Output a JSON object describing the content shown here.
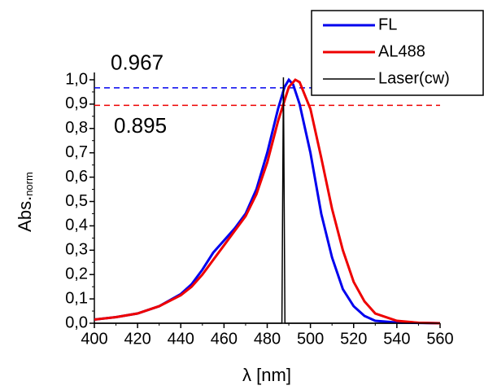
{
  "chart_data": {
    "type": "line",
    "x_label": "λ [nm]",
    "y_label": "Abs.",
    "y_label_sub": "norm",
    "xlim": [
      400,
      560
    ],
    "ylim": [
      0,
      1.03
    ],
    "xticks": [
      400,
      420,
      440,
      460,
      480,
      500,
      520,
      540,
      560
    ],
    "yticks": [
      {
        "value": 0,
        "label": "0,0"
      },
      {
        "value": 0.1,
        "label": "0,1"
      },
      {
        "value": 0.2,
        "label": "0,2"
      },
      {
        "value": 0.3,
        "label": "0,3"
      },
      {
        "value": 0.4,
        "label": "0,4"
      },
      {
        "value": 0.5,
        "label": "0,5"
      },
      {
        "value": 0.6,
        "label": "0,6"
      },
      {
        "value": 0.7,
        "label": "0,7"
      },
      {
        "value": 0.8,
        "label": "0,8"
      },
      {
        "value": 0.9,
        "label": "0,9"
      },
      {
        "value": 1.0,
        "label": "1,0"
      }
    ],
    "legend": "top-right",
    "series": [
      {
        "name": "FL",
        "color": "#0000ee",
        "x": [
          400,
          410,
          420,
          430,
          440,
          445,
          450,
          455,
          460,
          465,
          470,
          475,
          480,
          485,
          488,
          490,
          492,
          495,
          500,
          505,
          510,
          515,
          520,
          525,
          530,
          540,
          560
        ],
        "values": [
          0.015,
          0.025,
          0.04,
          0.07,
          0.12,
          0.16,
          0.22,
          0.29,
          0.34,
          0.39,
          0.45,
          0.55,
          0.7,
          0.88,
          0.97,
          1.0,
          0.98,
          0.9,
          0.7,
          0.45,
          0.27,
          0.14,
          0.07,
          0.03,
          0.01,
          0.003,
          0
        ]
      },
      {
        "name": "AL488",
        "color": "#ee0000",
        "x": [
          400,
          410,
          420,
          430,
          440,
          445,
          450,
          455,
          460,
          465,
          470,
          475,
          480,
          485,
          490,
          493,
          495,
          500,
          505,
          510,
          515,
          520,
          525,
          530,
          540,
          550,
          560
        ],
        "values": [
          0.015,
          0.025,
          0.04,
          0.07,
          0.115,
          0.15,
          0.2,
          0.26,
          0.32,
          0.38,
          0.44,
          0.53,
          0.66,
          0.83,
          0.97,
          1.0,
          0.99,
          0.88,
          0.68,
          0.47,
          0.3,
          0.17,
          0.09,
          0.04,
          0.01,
          0.002,
          0
        ]
      },
      {
        "name": "Laser(cw)",
        "color": "#000000",
        "x": [
          400,
          486.8,
          487.5,
          488.2,
          560
        ],
        "values": [
          0,
          0,
          1.01,
          0,
          0
        ]
      }
    ],
    "hlines": [
      {
        "value": 0.967,
        "label": "0.967",
        "color": "#0000ee"
      },
      {
        "value": 0.895,
        "label": "0.895",
        "color": "#ee0000"
      }
    ]
  }
}
